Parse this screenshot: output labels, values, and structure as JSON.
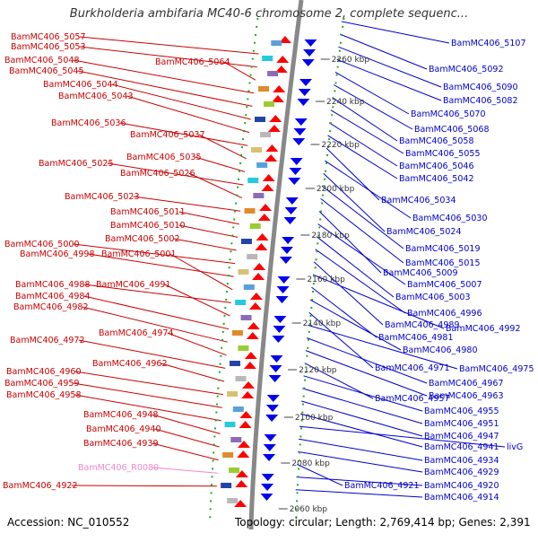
{
  "title": "Burkholderia ambifaria MC40-6 chromosome 2, complete sequenc...",
  "footer": {
    "accession": "Accession: NC_010552",
    "stats": "Topology: circular; Length: 2,769,414 bp; Genes: 2,391"
  },
  "colors": {
    "left_label": "#cc0000",
    "right_label": "#0000cc",
    "rna_label": "#ee88cc",
    "forward_gene": "#ff0000",
    "reverse_gene": "#0000ee",
    "backbone": "#888888",
    "dotted_track": "#22aa22"
  },
  "kbp_ticks": [
    "2260 kbp",
    "2240 kbp",
    "2220 kbp",
    "2200 kbp",
    "2180 kbp",
    "2160 kbp",
    "2140 kbp",
    "2120 kbp",
    "2100 kbp",
    "2080 kbp",
    "2060 kbp"
  ],
  "left_labels": [
    "BamMC406_5057",
    "BamMC406_5053",
    "BamMC406_5064",
    "BamMC406_5048",
    "BamMC406_5045",
    "BamMC406_5044",
    "BamMC406_5043",
    "BamMC406_5036",
    "BamMC406_5037",
    "BamMC406_5035",
    "BamMC406_5025",
    "BamMC406_5026",
    "BamMC406_5023",
    "BamMC406_5011",
    "BamMC406_5010",
    "BamMC406_5002",
    "BamMC406_5000",
    "BamMC406_4998",
    "BamMC406_5001",
    "BamMC406_4988",
    "BamMC406_4991",
    "BamMC406_4984",
    "BamMC406_4982",
    "BamMC406_4974",
    "BamMC406_4972",
    "BamMC406_4962",
    "BamMC406_4960",
    "BamMC406_4959",
    "BamMC406_4958",
    "BamMC406_4948",
    "BamMC406_4940",
    "BamMC406_4939",
    "BamMC406_R0080",
    "BamMC406_4922"
  ],
  "right_labels": [
    "BamMC406_5107",
    "BamMC406_5092",
    "BamMC406_5090",
    "BamMC406_5082",
    "BamMC406_5070",
    "BamMC406_5068",
    "BamMC406_5058",
    "BamMC406_5055",
    "BamMC406_5046",
    "BamMC406_5042",
    "BamMC406_5034",
    "BamMC406_5030",
    "BamMC406_5024",
    "BamMC406_5019",
    "BamMC406_5015",
    "BamMC406_5009",
    "BamMC406_5007",
    "BamMC406_5003",
    "BamMC406_4996",
    "BamMC406_4989",
    "BamMC406_4992",
    "BamMC406_4981",
    "BamMC406_4980",
    "BamMC406_4971",
    "BamMC406_4975",
    "BamMC406_4967",
    "BamMC406_4963",
    "BamMC406_4957",
    "BamMC406_4955",
    "BamMC406_4951",
    "BamMC406_4947",
    "BamMC406_4941",
    "livG",
    "BamMC406_4934",
    "BamMC406_4929",
    "BamMC406_4921",
    "BamMC406_4920",
    "BamMC406_4914"
  ]
}
